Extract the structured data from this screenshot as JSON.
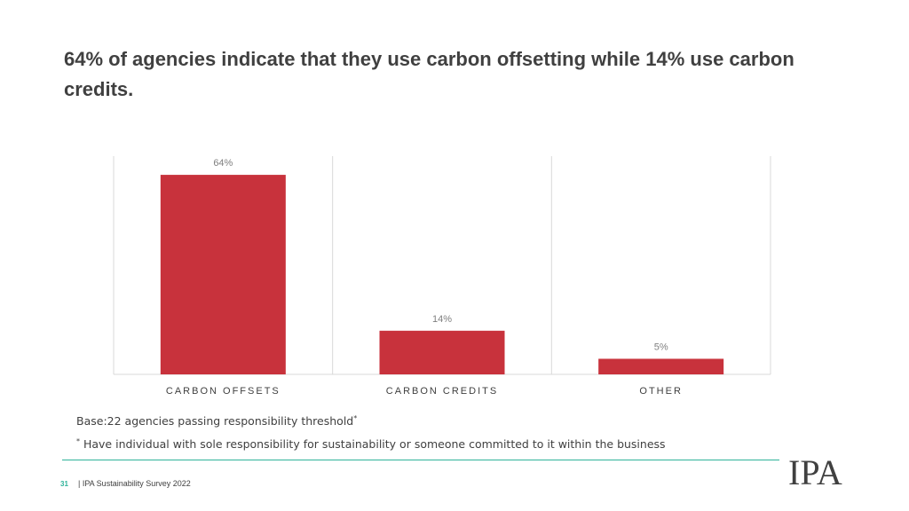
{
  "title": "64% of agencies indicate that they use carbon offsetting while 14% use carbon credits.",
  "notes": {
    "base": "Base:22 agencies passing responsibility threshold",
    "base_mark": "*",
    "footnote_mark": "*",
    "footnote": " Have individual with sole responsibility for sustainability or someone committed to it within the business"
  },
  "footer": {
    "page_number": "31",
    "source": "| IPA Sustainability Survey 2022"
  },
  "logo_text": "IPA",
  "colors": {
    "bar": "#c8323c",
    "grid": "#d9d9d9",
    "accent": "#2fb39a",
    "text": "#404040",
    "label": "#7f7f7f"
  },
  "chart_data": {
    "type": "bar",
    "categories": [
      "CARBON OFFSETS",
      "CARBON CREDITS",
      "OTHER"
    ],
    "values": [
      64,
      14,
      5
    ],
    "value_labels": [
      "64%",
      "14%",
      "5%"
    ],
    "ylim": [
      0,
      70
    ],
    "grid": "vertical category separators",
    "legend": "none"
  }
}
